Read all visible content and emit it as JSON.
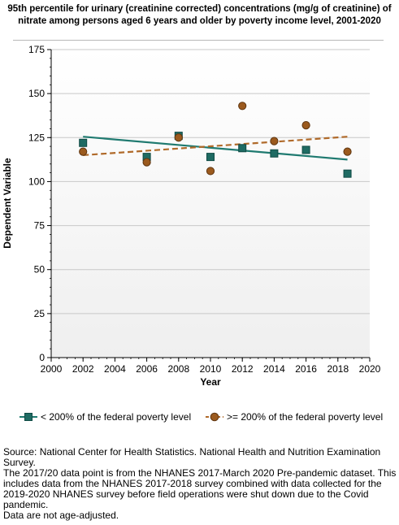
{
  "title": "95th percentile for urinary (creatinine corrected) concentrations (mg/g of creatinine) of nitrate among  persons aged 6 years and older by poverty income level, 2001-2020",
  "chart_data": {
    "type": "scatter",
    "xlabel": "Year",
    "ylabel": "Dependent Variable",
    "xlim": [
      2000,
      2020
    ],
    "ylim": [
      0,
      175
    ],
    "x_ticks": [
      "2000",
      "2002",
      "2004",
      "2006",
      "2008",
      "2010",
      "2012",
      "2014",
      "2016",
      "2018",
      "2020"
    ],
    "y_ticks": [
      "0",
      "25",
      "50",
      "75",
      "100",
      "125",
      "150",
      "175"
    ],
    "grid": "horizontal",
    "legend_position": "bottom",
    "series": [
      {
        "name": "< 200% of the federal poverty level",
        "marker": "square",
        "color": "#1f6b63",
        "x": [
          2002,
          2006,
          2008,
          2010,
          2012,
          2014,
          2016,
          2018.6
        ],
        "y": [
          122,
          114,
          126,
          114,
          119,
          116,
          118,
          104.5
        ],
        "trend": {
          "x": [
            2002,
            2018.6
          ],
          "y": [
            125.5,
            112.5
          ],
          "style": "solid",
          "color": "#1f7a70"
        }
      },
      {
        "name": ">= 200% of the federal poverty level",
        "marker": "circle",
        "color": "#9b5a1e",
        "x": [
          2002,
          2006,
          2008,
          2010,
          2012,
          2014,
          2016,
          2018.6
        ],
        "y": [
          117,
          111,
          125,
          106,
          143,
          123,
          132,
          117
        ],
        "trend": {
          "x": [
            2002,
            2018.6
          ],
          "y": [
            115,
            125.5
          ],
          "style": "dashed",
          "color": "#b06a2a"
        }
      }
    ]
  },
  "footnotes": [
    "Source: National Center for Health Statistics. National Health and Nutrition Examination Survey.",
    "The 2017/20 data point is from the NHANES 2017-March 2020 Pre-pandemic dataset. This includes data from the NHANES 2017-2018 survey combined with data collected for the 2019-2020 NHANES survey before field operations were shut down due to the Covid pandemic.",
    "Data are not age-adjusted."
  ]
}
